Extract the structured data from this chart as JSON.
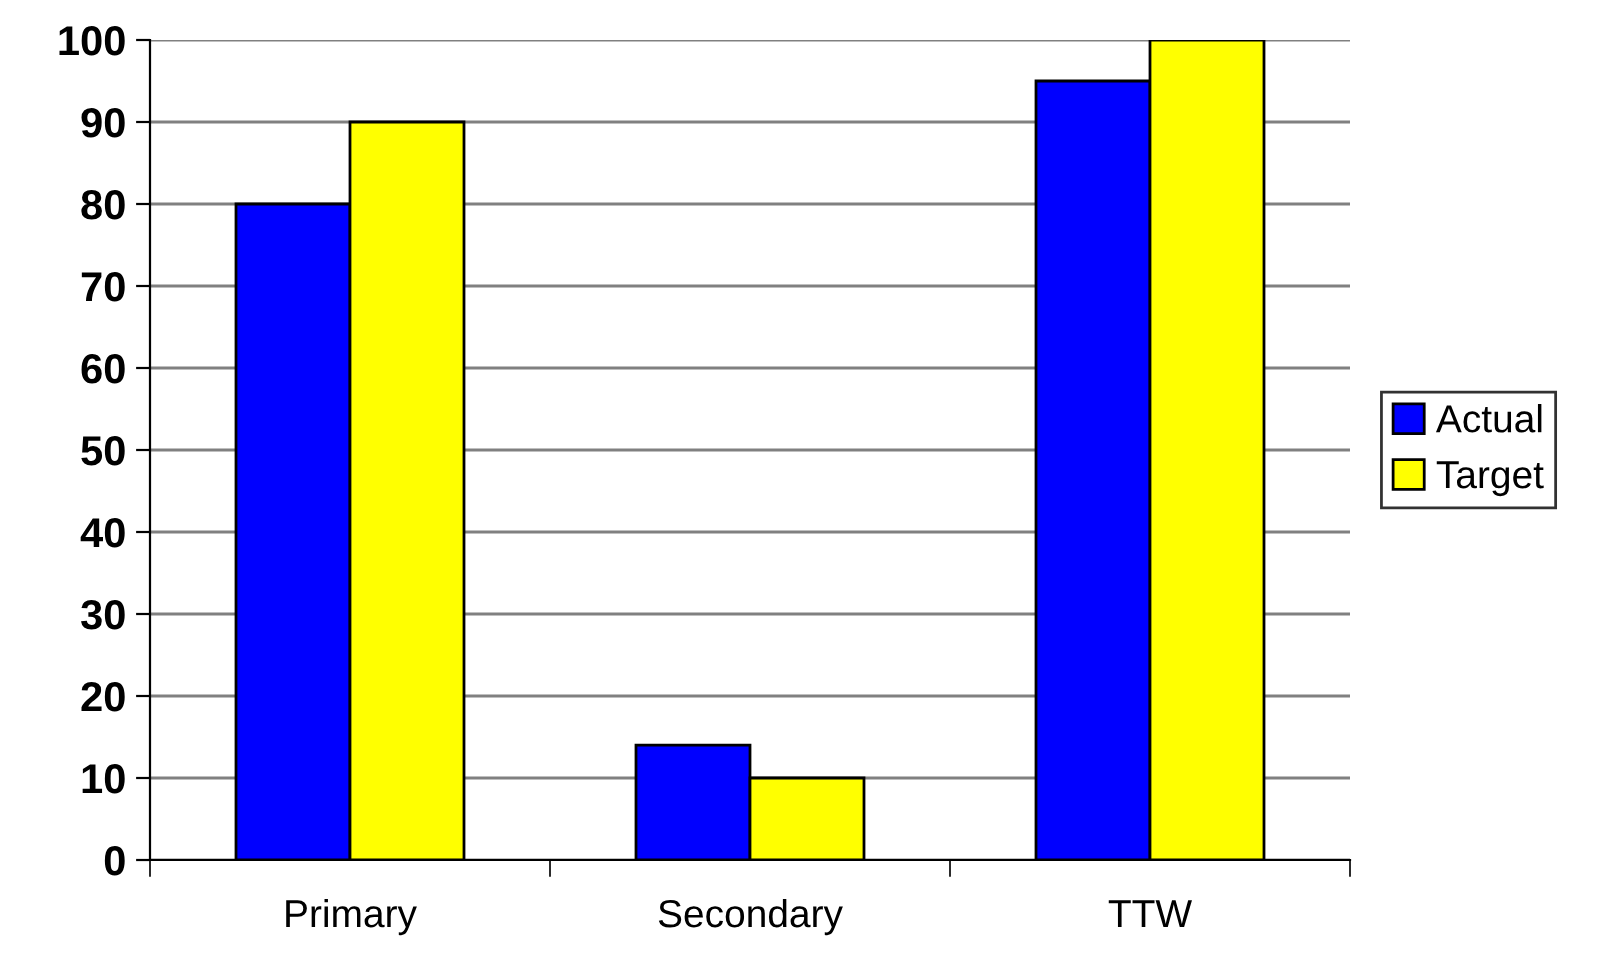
{
  "chart_data": {
    "type": "bar",
    "categories": [
      "Primary",
      "Secondary",
      "TTW"
    ],
    "series": [
      {
        "name": "Actual",
        "color": "#0000ff",
        "values": [
          80,
          14,
          95
        ]
      },
      {
        "name": "Target",
        "color": "#ffff00",
        "values": [
          90,
          10,
          100
        ]
      }
    ],
    "ylim": [
      0,
      100
    ],
    "yticks": [
      0,
      10,
      20,
      30,
      40,
      50,
      60,
      70,
      80,
      90,
      100
    ],
    "grid": "y",
    "legend": "right"
  }
}
